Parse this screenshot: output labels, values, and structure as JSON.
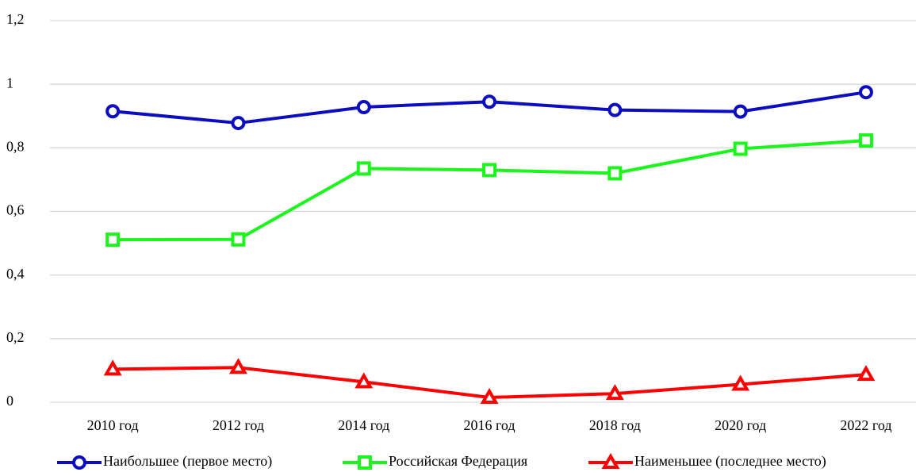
{
  "chart_data": {
    "type": "line",
    "categories": [
      "2010 год",
      "2012 год",
      "2014 год",
      "2016 год",
      "2018 год",
      "2020 год",
      "2022 год"
    ],
    "series": [
      {
        "name": "Наибольшее (первое место)",
        "color": "#0d0dc0",
        "marker": "circle",
        "values": [
          0.915,
          0.878,
          0.928,
          0.945,
          0.919,
          0.914,
          0.975
        ]
      },
      {
        "name": "Российская Федерация",
        "color": "#1cf51c",
        "marker": "square",
        "values": [
          0.511,
          0.512,
          0.735,
          0.73,
          0.72,
          0.797,
          0.823
        ]
      },
      {
        "name": "Наименьшее (последнее место)",
        "color": "#ff0000",
        "marker": "triangle",
        "values": [
          0.104,
          0.109,
          0.064,
          0.015,
          0.027,
          0.056,
          0.087
        ]
      }
    ],
    "ylim": [
      0,
      1.2
    ],
    "yticks": [
      0,
      {
        "value": 0.2,
        "label": "0,2"
      },
      {
        "value": 0.4,
        "label": "0,4"
      },
      {
        "value": 0.6,
        "label": "0,6"
      },
      {
        "value": 0.8,
        "label": "0,8"
      },
      1,
      {
        "value": 1.2,
        "label": "1,2"
      }
    ],
    "grid": true,
    "legend": "bottom"
  }
}
